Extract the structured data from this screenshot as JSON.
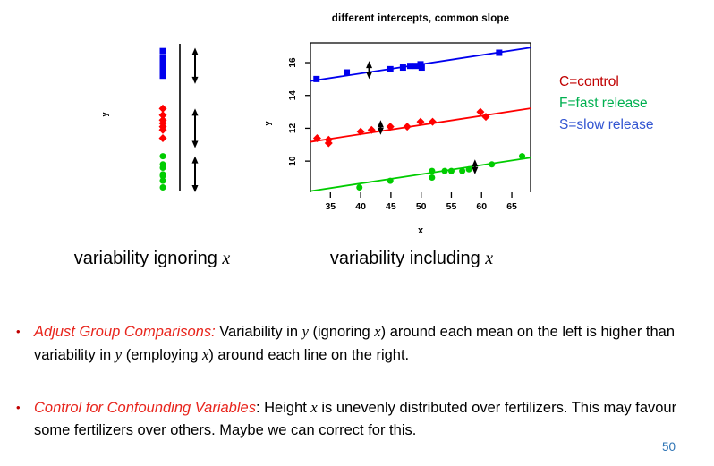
{
  "slide": {
    "colors": {
      "bullet_lead": "#E8251D",
      "bullet_marker": "#C00000",
      "page_number": "#2E74B5",
      "legend_control": "#C00000",
      "legend_fast": "#00B050",
      "legend_slow": "#3154D1"
    },
    "bullet_glyph": "•",
    "page_number": "50",
    "legend": {
      "items": [
        {
          "label": "C=control",
          "color": "#C00000"
        },
        {
          "label": "F=fast release",
          "color": "#00B050"
        },
        {
          "label": "S=slow release",
          "color": "#3154D1"
        }
      ]
    },
    "caption_left": {
      "segments": [
        {
          "t": "variability ignoring ",
          "s": "n"
        },
        {
          "t": "x",
          "s": "m"
        }
      ]
    },
    "caption_right": {
      "segments": [
        {
          "t": "variability including ",
          "s": "n"
        },
        {
          "t": "x",
          "s": "m"
        }
      ]
    },
    "bullets": [
      {
        "segments": [
          {
            "t": "Adjust Group Comparisons:",
            "s": "lead"
          },
          {
            "t": " Variability in ",
            "s": "n"
          },
          {
            "t": "y",
            "s": "m"
          },
          {
            "t": " (ignoring ",
            "s": "n"
          },
          {
            "t": "x",
            "s": "m"
          },
          {
            "t": ") around each mean on the left is higher than variability in ",
            "s": "n"
          },
          {
            "t": "y",
            "s": "m"
          },
          {
            "t": " (employing ",
            "s": "n"
          },
          {
            "t": "x",
            "s": "m"
          },
          {
            "t": ") around each line on the right.",
            "s": "n"
          }
        ]
      },
      {
        "segments": [
          {
            "t": "Control for Confounding Variables",
            "s": "lead"
          },
          {
            "t": ": Height ",
            "s": "n"
          },
          {
            "t": "x",
            "s": "m"
          },
          {
            "t": " is unevenly distributed over fertilizers. This may favour some fertilizers over others. Maybe we can correct for this.",
            "s": "n"
          }
        ]
      }
    ]
  },
  "chart_data": [
    {
      "id": "left-strip-plot",
      "type": "scatter",
      "subtype": "strip-plot",
      "caption": "variability ignoring x",
      "ylabel": "y",
      "ylim": [
        8.1,
        17.2
      ],
      "grid": false,
      "groups": [
        {
          "name": "S=slow release",
          "color": "#0000EE",
          "shape": "square",
          "y_values": [
            16.7,
            16.3,
            16.0,
            15.8,
            15.5,
            15.2
          ],
          "arrow_range": [
            14.7,
            16.9
          ]
        },
        {
          "name": "C=control",
          "color": "#FF0000",
          "shape": "diamond",
          "y_values": [
            13.2,
            12.8,
            12.5,
            12.3,
            12.1,
            11.9,
            11.4
          ],
          "arrow_range": [
            10.8,
            13.2
          ]
        },
        {
          "name": "F=fast release",
          "color": "#00CC00",
          "shape": "circle",
          "y_values": [
            10.3,
            9.8,
            9.6,
            9.2,
            9.1,
            8.8,
            8.4
          ],
          "arrow_range": [
            8.1,
            10.3
          ]
        }
      ]
    },
    {
      "id": "right-scatter-plot",
      "type": "scatter",
      "title": "different intercepts, common slope",
      "caption": "variability including x",
      "xlabel": "x",
      "ylabel": "y",
      "xlim": [
        31.7,
        68.1
      ],
      "ylim": [
        8.1,
        17.2
      ],
      "xticks": [
        35,
        40,
        45,
        50,
        55,
        60,
        65
      ],
      "yticks": [
        10,
        12,
        14,
        16
      ],
      "grid": false,
      "legend_position": "right-outside",
      "series": [
        {
          "name": "S=slow release",
          "color": "#0000EE",
          "shape": "square",
          "points": [
            [
              32.7,
              15.0
            ],
            [
              37.7,
              15.4
            ],
            [
              44.9,
              15.6
            ],
            [
              47.0,
              15.7
            ],
            [
              48.2,
              15.8
            ],
            [
              49.2,
              15.8
            ],
            [
              49.9,
              15.9
            ],
            [
              50.1,
              15.7
            ],
            [
              62.9,
              16.6
            ]
          ],
          "line": {
            "slope": 0.056,
            "intercept": 13.1
          },
          "arrow": {
            "x": 41.4,
            "y1": 15.0,
            "y2": 16.1
          }
        },
        {
          "name": "C=control",
          "color": "#FF0000",
          "shape": "diamond",
          "points": [
            [
              32.8,
              11.4
            ],
            [
              34.7,
              11.3
            ],
            [
              34.7,
              11.1
            ],
            [
              40.0,
              11.8
            ],
            [
              41.8,
              11.9
            ],
            [
              44.9,
              12.1
            ],
            [
              47.7,
              12.1
            ],
            [
              49.9,
              12.4
            ],
            [
              51.9,
              12.4
            ],
            [
              59.8,
              13.0
            ],
            [
              60.7,
              12.7
            ]
          ],
          "line": {
            "slope": 0.056,
            "intercept": 9.4
          },
          "arrow": {
            "x": 43.3,
            "y1": 11.6,
            "y2": 12.5
          }
        },
        {
          "name": "F=fast release",
          "color": "#00CC00",
          "shape": "circle",
          "points": [
            [
              39.8,
              8.4
            ],
            [
              44.9,
              8.8
            ],
            [
              51.8,
              9.4
            ],
            [
              51.8,
              9.0
            ],
            [
              53.9,
              9.4
            ],
            [
              55.0,
              9.4
            ],
            [
              56.8,
              9.4
            ],
            [
              57.9,
              9.5
            ],
            [
              61.7,
              9.8
            ],
            [
              66.7,
              10.3
            ]
          ],
          "line": {
            "slope": 0.056,
            "intercept": 6.4
          },
          "arrow": {
            "x": 58.9,
            "y1": 9.2,
            "y2": 10.1
          }
        }
      ]
    }
  ]
}
